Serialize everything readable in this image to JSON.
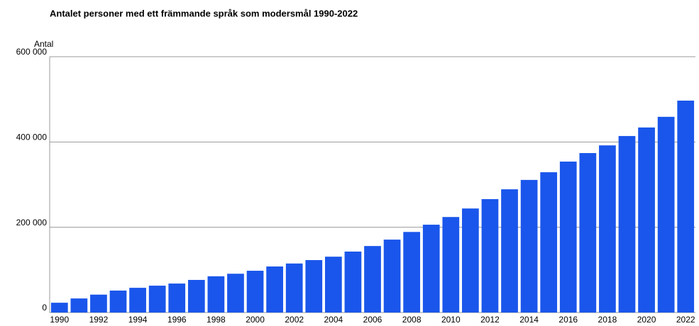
{
  "chart_data": {
    "type": "bar",
    "title": "Antalet personer med ett främmande språk som modersmål 1990-2022",
    "y_label": "Antal",
    "categories": [
      "1990",
      null,
      "1992",
      null,
      "1994",
      null,
      "1996",
      null,
      "1998",
      null,
      "2000",
      null,
      "2002",
      null,
      "2004",
      null,
      "2006",
      null,
      "2008",
      null,
      "2010",
      null,
      "2012",
      null,
      "2014",
      null,
      "2016",
      null,
      "2018",
      null,
      "2020",
      null,
      "2022"
    ],
    "values": [
      23000,
      33000,
      42000,
      51500,
      58000,
      63000,
      68000,
      76500,
      85000,
      91000,
      98000,
      108000,
      115000,
      123000,
      131000,
      143000,
      156000,
      171000,
      189000,
      206000,
      224000,
      244000,
      266000,
      289000,
      311000,
      329000,
      354000,
      374000,
      392000,
      414000,
      434000,
      459000,
      497000
    ],
    "color": "#1a56eb",
    "ylim": [
      0,
      600000
    ],
    "yticks": [
      0,
      {
        "value": 200000,
        "label": "200 000"
      },
      {
        "value": 400000,
        "label": "400 000"
      },
      {
        "value": 600000,
        "label": "600 000"
      }
    ],
    "grid": true
  }
}
